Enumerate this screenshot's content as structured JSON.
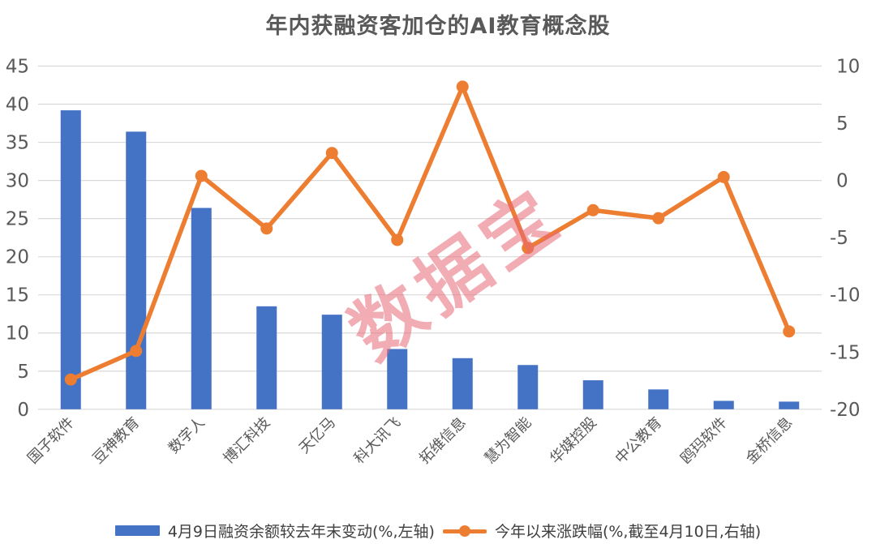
{
  "watermark": "数据宝",
  "colors": {
    "bar": "#4472C4",
    "line": "#ED7D31",
    "axis_text": "#595959",
    "grid": "#D9D9D9",
    "title_text": "#595959",
    "legend_text": "#3f3f3f",
    "watermark_pink": "#E86876"
  },
  "chart_data": {
    "type": "bar+line combo",
    "title": "年内获融资客加仓的AI教育概念股",
    "categories": [
      "国子软件",
      "豆神教育",
      "数字人",
      "博汇科技",
      "天亿马",
      "科大讯飞",
      "拓维信息",
      "慧为智能",
      "华媒控股",
      "中公教育",
      "鸥玛软件",
      "金桥信息"
    ],
    "series": [
      {
        "name": "4月9日融资余额较去年末变动(%,左轴)",
        "type": "bar",
        "axis": "left",
        "values": [
          39.2,
          36.4,
          26.4,
          13.5,
          12.4,
          7.9,
          6.7,
          5.8,
          3.8,
          2.6,
          1.1,
          1.0
        ]
      },
      {
        "name": "今年以来涨跌幅(%,截至4月10日,右轴)",
        "type": "line",
        "axis": "right",
        "values": [
          -17.4,
          -14.9,
          0.4,
          -4.2,
          2.4,
          -5.2,
          8.2,
          -5.9,
          -2.6,
          -3.3,
          0.3,
          -13.2
        ]
      }
    ],
    "left_axis": {
      "min": 0,
      "max": 45,
      "ticks": [
        45,
        40,
        35,
        30,
        25,
        20,
        15,
        10,
        5,
        0
      ]
    },
    "right_axis": {
      "min": -20,
      "max": 10,
      "ticks": [
        10,
        5,
        0,
        -5,
        -10,
        -15,
        -20
      ]
    },
    "grid": true,
    "legend_position": "bottom"
  }
}
